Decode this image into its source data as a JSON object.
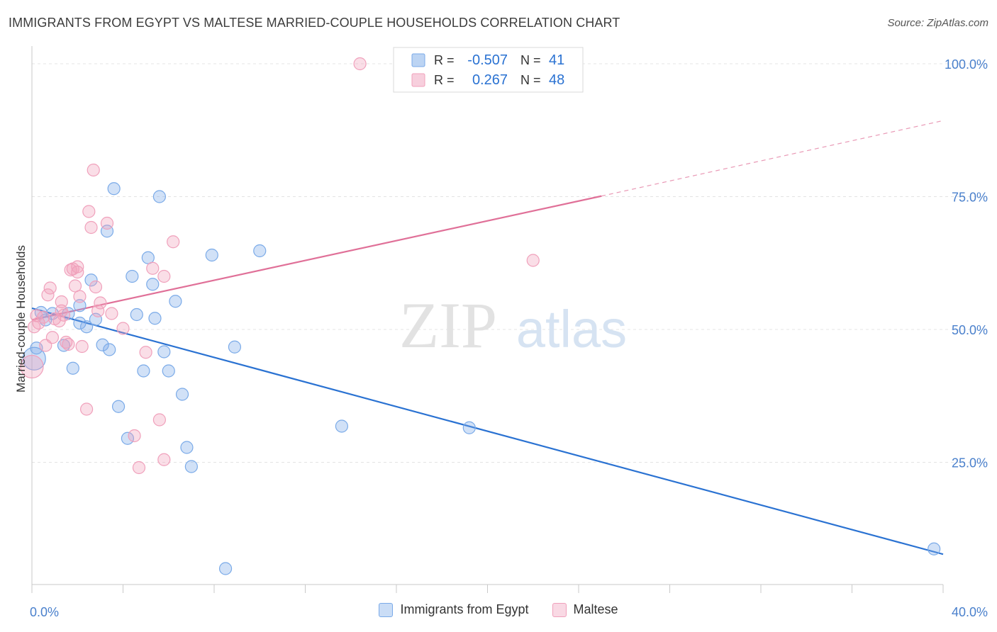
{
  "header": {
    "title": "IMMIGRANTS FROM EGYPT VS MALTESE MARRIED-COUPLE HOUSEHOLDS CORRELATION CHART",
    "source": "Source: ZipAtlas.com"
  },
  "watermark": {
    "zip": "ZIP",
    "atlas": "atlas"
  },
  "stats_legend": {
    "rows": [
      {
        "r_label": "R =",
        "r_value": "-0.507",
        "n_label": "N =",
        "n_value": "41",
        "color": "#7aaae8"
      },
      {
        "r_label": "R =",
        "r_value": "0.267",
        "n_label": "N =",
        "n_value": "48",
        "color": "#f0a0bb"
      }
    ]
  },
  "chart_data": {
    "type": "scatter",
    "title": "IMMIGRANTS FROM EGYPT VS MALTESE MARRIED-COUPLE HOUSEHOLDS CORRELATION CHART",
    "xlabel": "",
    "ylabel": "Married-couple Households",
    "xlim": [
      0,
      40
    ],
    "ylim": [
      2,
      102
    ],
    "x_tick_labels": [
      "0.0%",
      "40.0%"
    ],
    "y_tick_labels": [
      "25.0%",
      "50.0%",
      "75.0%",
      "100.0%"
    ],
    "y_ticks": [
      25,
      50,
      75,
      100
    ],
    "grid": true,
    "legend_position": "bottom",
    "series": [
      {
        "name": "Immigrants from Egypt",
        "color": "#7aaae8",
        "line_color": "#2a72d2",
        "trend": {
          "x": [
            0,
            40
          ],
          "y": [
            54.0,
            7.7
          ]
        },
        "points": [
          {
            "x": 0.1,
            "y": 44.5,
            "big": true
          },
          {
            "x": 0.2,
            "y": 46.5
          },
          {
            "x": 0.4,
            "y": 53.2
          },
          {
            "x": 0.6,
            "y": 51.8
          },
          {
            "x": 0.9,
            "y": 53.0
          },
          {
            "x": 1.4,
            "y": 47.0
          },
          {
            "x": 1.6,
            "y": 53.0
          },
          {
            "x": 1.8,
            "y": 42.7
          },
          {
            "x": 2.1,
            "y": 54.5
          },
          {
            "x": 2.1,
            "y": 51.2
          },
          {
            "x": 2.4,
            "y": 50.5
          },
          {
            "x": 2.6,
            "y": 59.3
          },
          {
            "x": 2.8,
            "y": 51.9
          },
          {
            "x": 3.1,
            "y": 47.1
          },
          {
            "x": 3.3,
            "y": 68.5
          },
          {
            "x": 3.4,
            "y": 46.2
          },
          {
            "x": 3.6,
            "y": 76.5
          },
          {
            "x": 3.8,
            "y": 35.5
          },
          {
            "x": 4.2,
            "y": 29.5
          },
          {
            "x": 4.4,
            "y": 60.0
          },
          {
            "x": 4.6,
            "y": 52.8
          },
          {
            "x": 4.9,
            "y": 42.2
          },
          {
            "x": 5.1,
            "y": 63.5
          },
          {
            "x": 5.3,
            "y": 58.5
          },
          {
            "x": 5.4,
            "y": 52.1
          },
          {
            "x": 5.6,
            "y": 75.0
          },
          {
            "x": 5.8,
            "y": 45.8
          },
          {
            "x": 6.0,
            "y": 42.2
          },
          {
            "x": 6.3,
            "y": 55.3
          },
          {
            "x": 6.6,
            "y": 37.8
          },
          {
            "x": 6.8,
            "y": 27.8
          },
          {
            "x": 7.0,
            "y": 24.2
          },
          {
            "x": 7.9,
            "y": 64.0
          },
          {
            "x": 8.5,
            "y": 5.0
          },
          {
            "x": 8.9,
            "y": 46.7
          },
          {
            "x": 10.0,
            "y": 64.8
          },
          {
            "x": 13.6,
            "y": 31.8
          },
          {
            "x": 19.2,
            "y": 31.5
          },
          {
            "x": 39.6,
            "y": 8.7
          }
        ]
      },
      {
        "name": "Maltese",
        "color": "#f0a0bb",
        "line_color": "#e07098",
        "trend": {
          "x": [
            0,
            25
          ],
          "y": [
            51.8,
            75.1
          ]
        },
        "trend_dashed": {
          "x": [
            25,
            40
          ],
          "y": [
            75.1,
            89.3
          ]
        },
        "points": [
          {
            "x": 0.0,
            "y": 43.0,
            "big": true
          },
          {
            "x": 0.1,
            "y": 50.5
          },
          {
            "x": 0.2,
            "y": 52.6
          },
          {
            "x": 0.3,
            "y": 51.2
          },
          {
            "x": 0.5,
            "y": 52.3
          },
          {
            "x": 0.6,
            "y": 47.0
          },
          {
            "x": 0.7,
            "y": 56.5
          },
          {
            "x": 0.8,
            "y": 57.8
          },
          {
            "x": 0.9,
            "y": 48.5
          },
          {
            "x": 1.0,
            "y": 52.0
          },
          {
            "x": 1.2,
            "y": 51.6
          },
          {
            "x": 1.3,
            "y": 53.5
          },
          {
            "x": 1.3,
            "y": 55.2
          },
          {
            "x": 1.4,
            "y": 52.7
          },
          {
            "x": 1.5,
            "y": 47.6
          },
          {
            "x": 1.6,
            "y": 47.2
          },
          {
            "x": 1.7,
            "y": 61.2
          },
          {
            "x": 1.8,
            "y": 61.4
          },
          {
            "x": 1.9,
            "y": 58.2
          },
          {
            "x": 2.0,
            "y": 61.8
          },
          {
            "x": 2.0,
            "y": 60.8
          },
          {
            "x": 2.1,
            "y": 56.2
          },
          {
            "x": 2.2,
            "y": 46.8
          },
          {
            "x": 2.4,
            "y": 35.0
          },
          {
            "x": 2.5,
            "y": 72.2
          },
          {
            "x": 2.6,
            "y": 69.2
          },
          {
            "x": 2.7,
            "y": 80.0
          },
          {
            "x": 2.8,
            "y": 58.0
          },
          {
            "x": 2.9,
            "y": 53.5
          },
          {
            "x": 3.0,
            "y": 55.0
          },
          {
            "x": 3.3,
            "y": 70.0
          },
          {
            "x": 3.5,
            "y": 53.0
          },
          {
            "x": 4.0,
            "y": 50.2
          },
          {
            "x": 4.5,
            "y": 30.0
          },
          {
            "x": 4.7,
            "y": 24.0
          },
          {
            "x": 5.0,
            "y": 45.7
          },
          {
            "x": 5.3,
            "y": 61.5
          },
          {
            "x": 5.6,
            "y": 33.0
          },
          {
            "x": 5.8,
            "y": 60.0
          },
          {
            "x": 5.8,
            "y": 25.5
          },
          {
            "x": 6.2,
            "y": 66.5
          },
          {
            "x": 14.4,
            "y": 100.0
          },
          {
            "x": 22.0,
            "y": 63.0
          }
        ]
      }
    ]
  }
}
